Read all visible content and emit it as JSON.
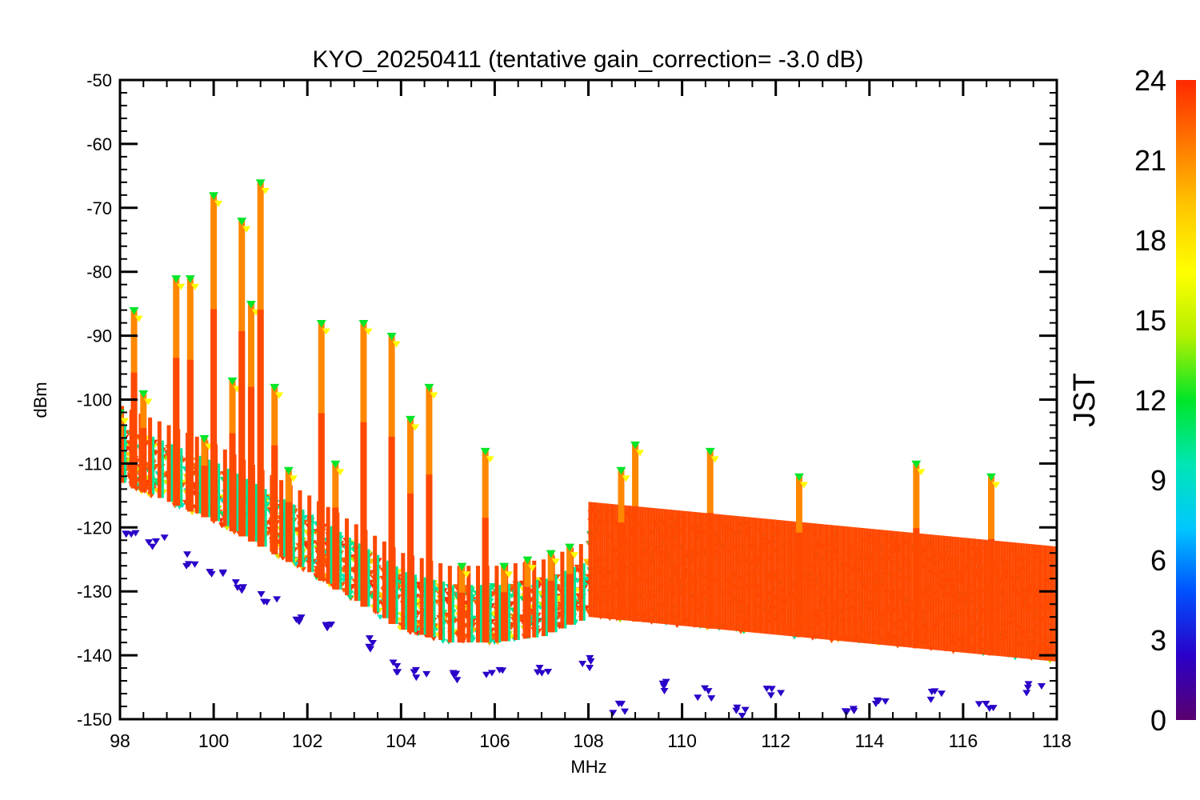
{
  "chart_data": {
    "type": "scatter",
    "title": "KYO_20250411 (tentative gain_correction= -3.0 dB)",
    "xlabel": "MHz",
    "ylabel": "dBm",
    "xlim": [
      98,
      118
    ],
    "ylim": [
      -150,
      -50
    ],
    "x_ticks": [
      "98",
      "100",
      "102",
      "104",
      "106",
      "108",
      "110",
      "112",
      "114",
      "116",
      "118"
    ],
    "y_ticks": [
      "-50",
      "-60",
      "-70",
      "-80",
      "-90",
      "-100",
      "-110",
      "-120",
      "-130",
      "-140",
      "-150"
    ],
    "grid": false,
    "colorbar": {
      "label": "JST",
      "range": [
        0,
        24
      ],
      "ticks": [
        "0",
        "3",
        "6",
        "9",
        "12",
        "15",
        "18",
        "21",
        "24"
      ],
      "colormap": "rainbow (purple -> blue -> cyan -> green -> yellow -> orange -> red)",
      "stops": [
        "#5a006e",
        "#2a00c8",
        "#0050ff",
        "#00c8ff",
        "#00e6b4",
        "#00e628",
        "#b4f000",
        "#ffff00",
        "#ffc800",
        "#ff7800",
        "#ff2800"
      ]
    },
    "noise_floor": [
      {
        "x": 98,
        "y": -113
      },
      {
        "x": 100,
        "y": -119
      },
      {
        "x": 102,
        "y": -127
      },
      {
        "x": 104,
        "y": -136
      },
      {
        "x": 105,
        "y": -138
      },
      {
        "x": 106,
        "y": -138
      },
      {
        "x": 107,
        "y": -137
      },
      {
        "x": 108,
        "y": -134
      },
      {
        "x": 118,
        "y": -141
      }
    ],
    "broadcast_peaks": [
      {
        "x": 98.0,
        "y": -102
      },
      {
        "x": 98.3,
        "y": -86
      },
      {
        "x": 98.5,
        "y": -99
      },
      {
        "x": 99.2,
        "y": -81
      },
      {
        "x": 99.5,
        "y": -81
      },
      {
        "x": 99.8,
        "y": -106
      },
      {
        "x": 100.0,
        "y": -68
      },
      {
        "x": 100.4,
        "y": -97
      },
      {
        "x": 100.6,
        "y": -72
      },
      {
        "x": 100.8,
        "y": -85
      },
      {
        "x": 101.0,
        "y": -66
      },
      {
        "x": 101.3,
        "y": -98
      },
      {
        "x": 101.6,
        "y": -111
      },
      {
        "x": 102.3,
        "y": -88
      },
      {
        "x": 102.6,
        "y": -110
      },
      {
        "x": 103.2,
        "y": -88
      },
      {
        "x": 103.8,
        "y": -90
      },
      {
        "x": 104.2,
        "y": -103
      },
      {
        "x": 104.6,
        "y": -98
      },
      {
        "x": 105.3,
        "y": -126
      },
      {
        "x": 105.8,
        "y": -108
      },
      {
        "x": 106.2,
        "y": -126
      },
      {
        "x": 106.7,
        "y": -125
      },
      {
        "x": 107.2,
        "y": -124
      },
      {
        "x": 107.6,
        "y": -123
      },
      {
        "x": 108.7,
        "y": -111
      },
      {
        "x": 109.0,
        "y": -107
      },
      {
        "x": 110.6,
        "y": -108
      },
      {
        "x": 112.5,
        "y": -112
      },
      {
        "x": 115.0,
        "y": -110
      },
      {
        "x": 116.6,
        "y": -112
      }
    ],
    "night_minimum_scatter": [
      {
        "x": 98.2,
        "y": -120
      },
      {
        "x": 98.8,
        "y": -122
      },
      {
        "x": 99.5,
        "y": -125
      },
      {
        "x": 100.0,
        "y": -127
      },
      {
        "x": 100.5,
        "y": -129
      },
      {
        "x": 101.2,
        "y": -131
      },
      {
        "x": 101.8,
        "y": -134
      },
      {
        "x": 102.5,
        "y": -136
      },
      {
        "x": 103.2,
        "y": -138
      },
      {
        "x": 103.8,
        "y": -142
      },
      {
        "x": 104.4,
        "y": -143
      },
      {
        "x": 105.2,
        "y": -143
      },
      {
        "x": 106.0,
        "y": -143
      },
      {
        "x": 107.0,
        "y": -142
      },
      {
        "x": 108.0,
        "y": -141
      },
      {
        "x": 108.6,
        "y": -148
      },
      {
        "x": 109.5,
        "y": -145
      },
      {
        "x": 110.5,
        "y": -146
      },
      {
        "x": 111.3,
        "y": -149
      },
      {
        "x": 112.0,
        "y": -146
      },
      {
        "x": 113.5,
        "y": -149
      },
      {
        "x": 114.3,
        "y": -147
      },
      {
        "x": 115.5,
        "y": -146
      },
      {
        "x": 116.5,
        "y": -148
      },
      {
        "x": 117.5,
        "y": -145
      }
    ]
  }
}
